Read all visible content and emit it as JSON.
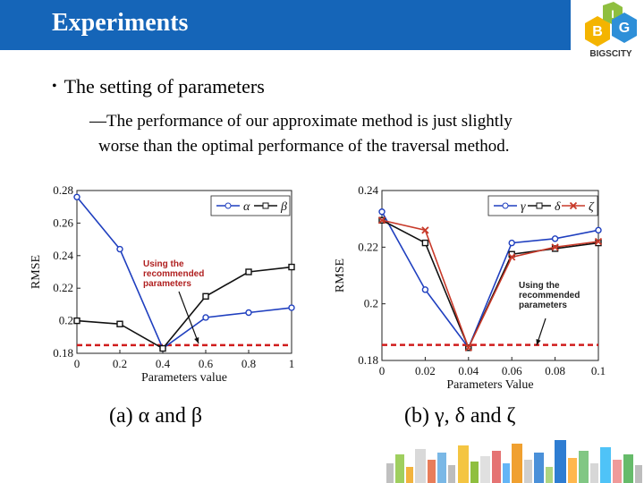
{
  "header": {
    "title": "Experiments",
    "bg_color": "#1565b8",
    "logo_text": "BIGSCITY",
    "logo_letters": [
      "B",
      "I",
      "G"
    ]
  },
  "content": {
    "bullet": "The setting of parameters",
    "sub_marker": "—",
    "sub_line1": "The performance of our approximate method is just slightly",
    "sub_line2": "worse than the optimal performance of the traversal method."
  },
  "captions": {
    "a": "(a)  α and β",
    "b": "(b)  γ, δ and ζ"
  },
  "chart_data": [
    {
      "type": "line",
      "xlabel": "Parameters value",
      "ylabel": "RMSE",
      "x": [
        0,
        0.2,
        0.4,
        0.6,
        0.8,
        1
      ],
      "xticks": [
        "0",
        "0.2",
        "0.4",
        "0.6",
        "0.8",
        "1"
      ],
      "yticks": [
        "0.18",
        "0.2",
        "0.22",
        "0.24",
        "0.26",
        "0.28"
      ],
      "ylim": [
        0.18,
        0.28
      ],
      "series": [
        {
          "name": "α",
          "color": "#1f3fbf",
          "marker": "circle",
          "values": [
            0.276,
            0.244,
            0.183,
            0.202,
            0.205,
            0.208
          ]
        },
        {
          "name": "β",
          "color": "#111111",
          "marker": "square",
          "values": [
            0.2,
            0.198,
            0.183,
            0.215,
            0.23,
            0.233
          ]
        }
      ],
      "baseline": 0.185,
      "annotation": [
        "Using the",
        "recommended",
        "parameters"
      ]
    },
    {
      "type": "line",
      "xlabel": "Parameters Value",
      "ylabel": "RMSE",
      "x": [
        0,
        0.02,
        0.04,
        0.06,
        0.08,
        0.1
      ],
      "xticks": [
        "0",
        "0.02",
        "0.04",
        "0.06",
        "0.08",
        "0.1"
      ],
      "yticks": [
        "0.18",
        "0.2",
        "0.22",
        "0.24"
      ],
      "ylim": [
        0.18,
        0.24
      ],
      "series": [
        {
          "name": "γ",
          "color": "#1f3fbf",
          "marker": "circle",
          "values": [
            0.2325,
            0.205,
            0.1845,
            0.2215,
            0.223,
            0.226
          ]
        },
        {
          "name": "δ",
          "color": "#111111",
          "marker": "square",
          "values": [
            0.2295,
            0.2215,
            0.1845,
            0.2175,
            0.2195,
            0.2215
          ]
        },
        {
          "name": "ζ",
          "color": "#c83a2a",
          "marker": "x",
          "values": [
            0.2295,
            0.226,
            0.1845,
            0.2165,
            0.22,
            0.222
          ]
        }
      ],
      "baseline": 0.1855,
      "annotation": [
        "Using the",
        "recommended",
        "parameters"
      ]
    }
  ]
}
